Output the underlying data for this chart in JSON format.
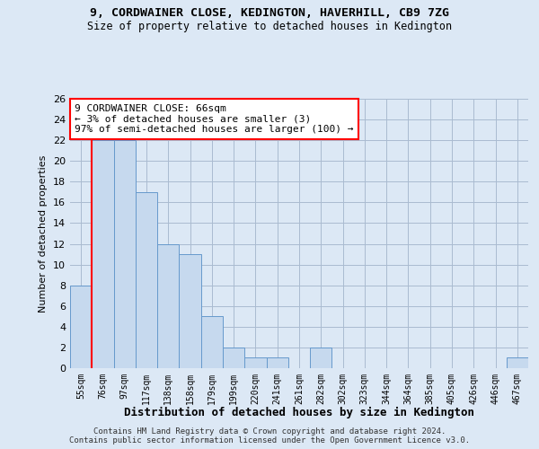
{
  "title1": "9, CORDWAINER CLOSE, KEDINGTON, HAVERHILL, CB9 7ZG",
  "title2": "Size of property relative to detached houses in Kedington",
  "xlabel": "Distribution of detached houses by size in Kedington",
  "ylabel": "Number of detached properties",
  "categories": [
    "55sqm",
    "76sqm",
    "97sqm",
    "117sqm",
    "138sqm",
    "158sqm",
    "179sqm",
    "199sqm",
    "220sqm",
    "241sqm",
    "261sqm",
    "282sqm",
    "302sqm",
    "323sqm",
    "344sqm",
    "364sqm",
    "385sqm",
    "405sqm",
    "426sqm",
    "446sqm",
    "467sqm"
  ],
  "values": [
    8,
    22,
    22,
    17,
    12,
    11,
    5,
    2,
    1,
    1,
    0,
    2,
    0,
    0,
    0,
    0,
    0,
    0,
    0,
    0,
    1
  ],
  "bar_color": "#c6d9ee",
  "bar_edge_color": "#6699cc",
  "vline_color": "red",
  "annotation_line1": "9 CORDWAINER CLOSE: 66sqm",
  "annotation_line2": "← 3% of detached houses are smaller (3)",
  "annotation_line3": "97% of semi-detached houses are larger (100) →",
  "annotation_box_color": "white",
  "annotation_box_edge_color": "red",
  "ylim": [
    0,
    26
  ],
  "yticks": [
    0,
    2,
    4,
    6,
    8,
    10,
    12,
    14,
    16,
    18,
    20,
    22,
    24,
    26
  ],
  "grid_color": "#aabbd0",
  "background_color": "#dce8f5",
  "footer1": "Contains HM Land Registry data © Crown copyright and database right 2024.",
  "footer2": "Contains public sector information licensed under the Open Government Licence v3.0."
}
